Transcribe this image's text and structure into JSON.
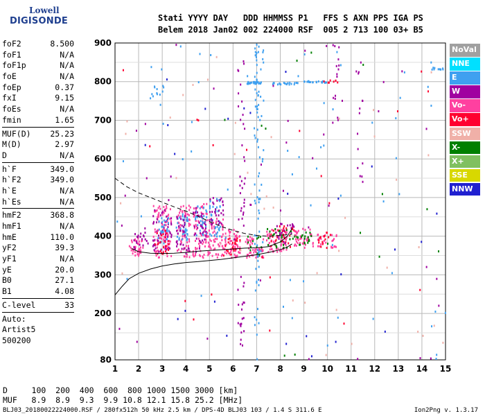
{
  "logo": {
    "line1": "Lowell",
    "line2": "DIGISONDE"
  },
  "header": {
    "line1": "Stati YYYY DAY   DDD HHMMSS P1   FFS S AXN PPS IGA PS",
    "line2": "Belem 2018 Jan02 002 224000 RSF  005 2 713 100 03+ B5"
  },
  "params": {
    "group1": [
      {
        "label": "foF2",
        "value": "8.500"
      },
      {
        "label": "foF1",
        "value": "N/A"
      },
      {
        "label": "foF1p",
        "value": "N/A"
      },
      {
        "label": "foE",
        "value": "N/A"
      },
      {
        "label": "foEp",
        "value": "0.37"
      },
      {
        "label": "fxI",
        "value": "9.15"
      },
      {
        "label": "foEs",
        "value": "N/A"
      },
      {
        "label": "fmin",
        "value": "1.65"
      }
    ],
    "group2": [
      {
        "label": "MUF(D)",
        "value": "25.23"
      },
      {
        "label": "M(D)",
        "value": "2.97"
      },
      {
        "label": "D",
        "value": "N/A"
      }
    ],
    "group3": [
      {
        "label": "h`F",
        "value": "349.0"
      },
      {
        "label": "h`F2",
        "value": "349.0"
      },
      {
        "label": "h`E",
        "value": "N/A"
      },
      {
        "label": "h`Es",
        "value": "N/A"
      }
    ],
    "group4": [
      {
        "label": "hmF2",
        "value": "368.8"
      },
      {
        "label": "hmF1",
        "value": "N/A"
      },
      {
        "label": "hmE",
        "value": "110.0"
      },
      {
        "label": "yF2",
        "value": "39.3"
      },
      {
        "label": "yF1",
        "value": "N/A"
      },
      {
        "label": "yE",
        "value": "20.0"
      },
      {
        "label": "B0",
        "value": "27.1"
      },
      {
        "label": "B1",
        "value": "4.08"
      }
    ],
    "group5": [
      {
        "label": "C-level",
        "value": "33"
      }
    ],
    "auto": [
      "Auto:",
      "Artist5",
      "500200"
    ]
  },
  "legend": [
    {
      "label": "NoVal",
      "color": "#a0a0a0"
    },
    {
      "label": "NNE",
      "color": "#00e0ff"
    },
    {
      "label": "E",
      "color": "#3fa0f0"
    },
    {
      "label": "W",
      "color": "#a000a0"
    },
    {
      "label": "Vo-",
      "color": "#ff40a0"
    },
    {
      "label": "Vo+",
      "color": "#ff0030"
    },
    {
      "label": "SSW",
      "color": "#f0b0a8"
    },
    {
      "label": "X-",
      "color": "#008000"
    },
    {
      "label": "X+",
      "color": "#80c060"
    },
    {
      "label": "SSE",
      "color": "#d8d800"
    },
    {
      "label": "NNW",
      "color": "#2020d0"
    }
  ],
  "dmuf": {
    "line1": "D     100  200  400  600  800 1000 1500 3000 [km]",
    "line2": "MUF   8.9  8.9  9.3  9.9 10.8 12.1 15.8 25.2 [MHz]"
  },
  "footer": {
    "left": "BLJ03_20180022224000.RSF / 280fx512h 50 kHz 2.5 km / DPS-4D BLJ03 103 / 1.4 S 311.6 E",
    "right": "Ion2Png v. 1.3.17"
  },
  "chart_data": {
    "type": "scatter",
    "xlim": [
      1,
      15
    ],
    "ylim": [
      80,
      900
    ],
    "x_ticks": [
      1,
      2,
      3,
      4,
      5,
      6,
      7,
      8,
      9,
      10,
      11,
      12,
      13,
      14,
      15
    ],
    "y_ticks": [
      80,
      200,
      300,
      400,
      500,
      600,
      700,
      800,
      900
    ],
    "grid": true,
    "curves": [
      {
        "style": "solid",
        "points": [
          [
            1.0,
            248
          ],
          [
            1.3,
            270
          ],
          [
            1.6,
            290
          ],
          [
            2.0,
            304
          ],
          [
            2.5,
            315
          ],
          [
            3.0,
            323
          ],
          [
            3.5,
            328
          ],
          [
            4.0,
            332
          ],
          [
            4.5,
            334
          ],
          [
            5.0,
            337
          ],
          [
            5.5,
            340
          ],
          [
            6.0,
            344
          ],
          [
            6.5,
            348
          ],
          [
            7.0,
            352
          ],
          [
            7.5,
            358
          ],
          [
            8.0,
            365
          ],
          [
            8.3,
            372
          ],
          [
            8.5,
            380
          ]
        ]
      },
      {
        "style": "solid",
        "points": [
          [
            1.7,
            368
          ],
          [
            2.0,
            360
          ],
          [
            2.5,
            356
          ],
          [
            3.0,
            355
          ],
          [
            3.5,
            356
          ],
          [
            4.0,
            358
          ],
          [
            4.5,
            361
          ],
          [
            5.0,
            363
          ],
          [
            5.5,
            365
          ],
          [
            6.0,
            367
          ],
          [
            6.5,
            369
          ],
          [
            7.0,
            370
          ],
          [
            7.5,
            373
          ],
          [
            8.0,
            385
          ],
          [
            8.3,
            400
          ],
          [
            8.5,
            420
          ]
        ]
      },
      {
        "style": "dashed",
        "points": [
          [
            1.0,
            550
          ],
          [
            1.5,
            528
          ],
          [
            2.0,
            512
          ],
          [
            2.5,
            500
          ],
          [
            3.0,
            488
          ],
          [
            3.5,
            476
          ],
          [
            4.0,
            465
          ],
          [
            4.5,
            452
          ],
          [
            5.0,
            438
          ],
          [
            5.5,
            425
          ],
          [
            6.0,
            415
          ],
          [
            6.5,
            407
          ],
          [
            7.0,
            402
          ],
          [
            7.5,
            400
          ],
          [
            8.0,
            402
          ],
          [
            8.5,
            405
          ]
        ]
      }
    ],
    "clusters": [
      {
        "series": "Vo-",
        "x": [
          1.6,
          2.2
        ],
        "y": [
          350,
          395
        ],
        "n": 40
      },
      {
        "series": "W",
        "x": [
          1.8,
          2.4
        ],
        "y": [
          355,
          410
        ],
        "n": 20
      },
      {
        "series": "Vo-",
        "x": [
          2.6,
          3.4
        ],
        "y": [
          345,
          480
        ],
        "n": 90
      },
      {
        "series": "W",
        "x": [
          2.6,
          3.4
        ],
        "y": [
          360,
          470
        ],
        "n": 50
      },
      {
        "series": "E",
        "x": [
          2.8,
          3.3
        ],
        "y": [
          380,
          450
        ],
        "n": 25
      },
      {
        "series": "Vo+",
        "x": [
          2.7,
          3.3
        ],
        "y": [
          355,
          420
        ],
        "n": 25
      },
      {
        "series": "Vo-",
        "x": [
          3.6,
          4.2
        ],
        "y": [
          345,
          480
        ],
        "n": 70
      },
      {
        "series": "E",
        "x": [
          3.6,
          4.1
        ],
        "y": [
          390,
          460
        ],
        "n": 35
      },
      {
        "series": "W",
        "x": [
          3.6,
          4.2
        ],
        "y": [
          350,
          460
        ],
        "n": 30
      },
      {
        "series": "Vo-",
        "x": [
          4.3,
          4.9
        ],
        "y": [
          345,
          490
        ],
        "n": 70
      },
      {
        "series": "E",
        "x": [
          4.4,
          4.9
        ],
        "y": [
          400,
          480
        ],
        "n": 35
      },
      {
        "series": "W",
        "x": [
          4.3,
          4.9
        ],
        "y": [
          360,
          480
        ],
        "n": 30
      },
      {
        "series": "Vo-",
        "x": [
          4.9,
          5.6
        ],
        "y": [
          345,
          450
        ],
        "n": 70
      },
      {
        "series": "E",
        "x": [
          5.0,
          5.5
        ],
        "y": [
          400,
          500
        ],
        "n": 35
      },
      {
        "series": "W",
        "x": [
          5.0,
          5.6
        ],
        "y": [
          430,
          500
        ],
        "n": 30
      },
      {
        "series": "Vo-",
        "x": [
          5.6,
          6.3
        ],
        "y": [
          345,
          420
        ],
        "n": 60
      },
      {
        "series": "Vo+",
        "x": [
          5.6,
          6.3
        ],
        "y": [
          350,
          400
        ],
        "n": 25
      },
      {
        "series": "Vo-",
        "x": [
          6.5,
          7.3
        ],
        "y": [
          345,
          400
        ],
        "n": 50
      },
      {
        "series": "X-",
        "x": [
          6.5,
          7.3
        ],
        "y": [
          350,
          400
        ],
        "n": 12
      },
      {
        "series": "Vo-",
        "x": [
          7.4,
          8.3
        ],
        "y": [
          360,
          420
        ],
        "n": 60
      },
      {
        "series": "X-",
        "x": [
          7.4,
          8.6
        ],
        "y": [
          370,
          420
        ],
        "n": 25
      },
      {
        "series": "Vo+",
        "x": [
          7.6,
          8.6
        ],
        "y": [
          370,
          430
        ],
        "n": 30
      },
      {
        "series": "W",
        "x": [
          7.8,
          8.6
        ],
        "y": [
          380,
          440
        ],
        "n": 20
      },
      {
        "series": "Vo-",
        "x": [
          8.6,
          9.4
        ],
        "y": [
          370,
          420
        ],
        "n": 45
      },
      {
        "series": "X-",
        "x": [
          8.6,
          9.4
        ],
        "y": [
          375,
          415
        ],
        "n": 20
      },
      {
        "series": "Vo-",
        "x": [
          9.5,
          10.4
        ],
        "y": [
          370,
          410
        ],
        "n": 25
      },
      {
        "series": "Vo+",
        "x": [
          9.6,
          10.3
        ],
        "y": [
          370,
          410
        ],
        "n": 15
      },
      {
        "series": "E",
        "x": [
          2.5,
          3.2
        ],
        "y": [
          730,
          790
        ],
        "n": 12
      },
      {
        "series": "E",
        "x": [
          6.6,
          7.2
        ],
        "y": [
          795,
          800
        ],
        "n": 25
      },
      {
        "series": "E",
        "x": [
          7.6,
          8.8
        ],
        "y": [
          793,
          798
        ],
        "n": 20
      },
      {
        "series": "E",
        "x": [
          9.0,
          10.0
        ],
        "y": [
          797,
          802
        ],
        "n": 20
      },
      {
        "series": "Vo+",
        "x": [
          9.8,
          10.5
        ],
        "y": [
          798,
          805
        ],
        "n": 8
      },
      {
        "series": "E",
        "x": [
          14.4,
          14.9
        ],
        "y": [
          832,
          838
        ],
        "n": 10
      },
      {
        "series": "W",
        "x": [
          10.2,
          10.5
        ],
        "y": [
          680,
          900
        ],
        "n": 15
      },
      {
        "series": "W",
        "x": [
          11.2,
          11.5
        ],
        "y": [
          540,
          900
        ],
        "n": 15
      },
      {
        "series": "E",
        "x": [
          6.9,
          7.1
        ],
        "y": [
          80,
          900
        ],
        "n": 60
      },
      {
        "series": "W",
        "x": [
          6.2,
          6.5
        ],
        "y": [
          400,
          900
        ],
        "n": 30
      },
      {
        "series": "W",
        "x": [
          6.2,
          6.5
        ],
        "y": [
          100,
          300
        ],
        "n": 20
      },
      {
        "series": "E",
        "x": [
          7.0,
          7.3
        ],
        "y": [
          300,
          900
        ],
        "n": 30
      },
      {
        "series": "SSW",
        "x": [
          1.0,
          15.0
        ],
        "y": [
          80,
          900
        ],
        "n": 40
      },
      {
        "series": "E",
        "x": [
          1.0,
          15.0
        ],
        "y": [
          80,
          900
        ],
        "n": 60
      },
      {
        "series": "W",
        "x": [
          1.0,
          15.0
        ],
        "y": [
          80,
          900
        ],
        "n": 50
      },
      {
        "series": "NNW",
        "x": [
          1.0,
          15.0
        ],
        "y": [
          80,
          900
        ],
        "n": 25
      },
      {
        "series": "X-",
        "x": [
          1.0,
          15.0
        ],
        "y": [
          80,
          900
        ],
        "n": 15
      },
      {
        "series": "Vo+",
        "x": [
          1.0,
          15.0
        ],
        "y": [
          80,
          900
        ],
        "n": 20
      }
    ]
  }
}
